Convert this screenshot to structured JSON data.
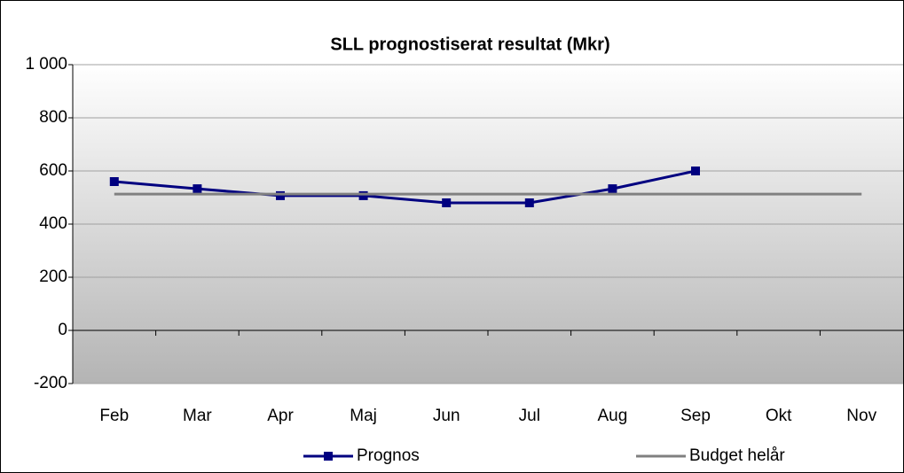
{
  "chart_data": {
    "type": "line",
    "title": "SLL prognostiserat resultat (Mkr)",
    "categories": [
      "Feb",
      "Mar",
      "Apr",
      "Maj",
      "Jun",
      "Jul",
      "Aug",
      "Sep",
      "Okt",
      "Nov"
    ],
    "series": [
      {
        "name": "Prognos",
        "color": "#000080",
        "marker": "square",
        "values": [
          560,
          533,
          507,
          507,
          480,
          480,
          533,
          600,
          null,
          null
        ]
      },
      {
        "name": "Budget helår",
        "color": "#808080",
        "marker": "none",
        "values": [
          513,
          513,
          513,
          513,
          513,
          513,
          513,
          513,
          513,
          513
        ]
      }
    ],
    "ylim": [
      -200,
      1000
    ],
    "yticks": [
      -200,
      0,
      200,
      400,
      600,
      {
        "value": 1000,
        "label": "1 000"
      },
      800
    ],
    "grid": true,
    "legend": "bottom"
  }
}
